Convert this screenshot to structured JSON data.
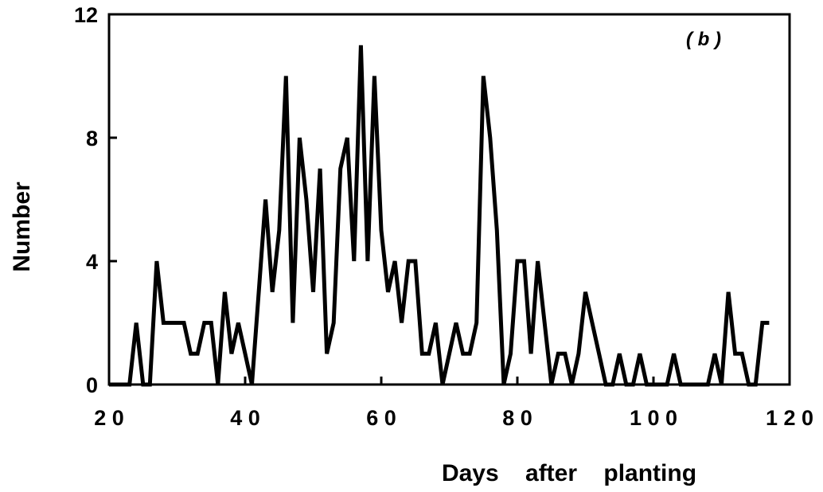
{
  "chart_data": {
    "type": "line",
    "title": "",
    "panel_label": "( b )",
    "xlabel": "Days    after    planting",
    "ylabel": "Number",
    "xlim": [
      20,
      120
    ],
    "ylim": [
      0,
      12
    ],
    "x_ticks": [
      20,
      40,
      60,
      80,
      100,
      120
    ],
    "x_tick_labels": [
      "2 0",
      "4 0",
      "6 0",
      "8 0",
      "1 0 0",
      "1 2 0"
    ],
    "y_ticks": [
      0,
      4,
      8,
      12
    ],
    "y_tick_labels": [
      "0",
      "4",
      "8",
      "12"
    ],
    "grid": false,
    "legend": "none",
    "line_color": "#000000",
    "series": [
      {
        "x": [
          20,
          23,
          24,
          25,
          25.5,
          26,
          27,
          28,
          29,
          30,
          31,
          32,
          33,
          34,
          34.5,
          35,
          36,
          37,
          38,
          39,
          40,
          41,
          42,
          43,
          44,
          45,
          46,
          47,
          48,
          49,
          50,
          51,
          52,
          53,
          54,
          55,
          56,
          57,
          58,
          59,
          60,
          61,
          62,
          63,
          64,
          65,
          66,
          67,
          68,
          69,
          70,
          71,
          72,
          73,
          74,
          75,
          76,
          77,
          78,
          79,
          80,
          81,
          82,
          83,
          84,
          85,
          86,
          87,
          88,
          89,
          90,
          91,
          92,
          93,
          94,
          95,
          96,
          97,
          98,
          99,
          100,
          101,
          102,
          103,
          104,
          105,
          106,
          107,
          108,
          109,
          110,
          111,
          112,
          113,
          114,
          115,
          116,
          117
        ],
        "y": [
          0,
          0,
          2,
          0,
          0,
          0,
          4,
          2,
          2,
          2,
          2,
          1,
          1,
          2,
          2,
          2,
          0,
          3,
          1,
          2,
          1,
          0,
          3,
          6,
          3,
          5,
          10,
          2,
          8,
          6,
          3,
          7,
          1,
          2,
          7,
          8,
          4,
          11,
          4,
          10,
          5,
          3,
          4,
          2,
          4,
          4,
          1,
          1,
          2,
          0,
          1,
          2,
          1,
          1,
          2,
          10,
          8,
          5,
          0,
          1,
          4,
          4,
          1,
          4,
          2,
          0,
          1,
          1,
          0,
          1,
          3,
          2,
          1,
          0,
          0,
          1,
          0,
          0,
          1,
          0,
          0,
          0,
          0,
          1,
          0,
          0,
          0,
          0,
          0,
          1,
          0,
          3,
          1,
          1,
          0,
          0,
          2,
          2
        ]
      }
    ]
  }
}
